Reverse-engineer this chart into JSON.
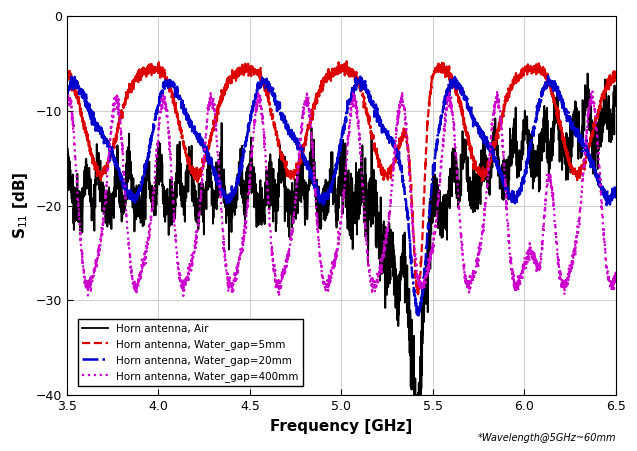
{
  "xlabel": "Frequency [GHz]",
  "ylabel": "S$_{11}$ [dB]",
  "xlim": [
    3.5,
    6.5
  ],
  "ylim": [
    -40,
    0
  ],
  "xticks": [
    3.5,
    4.0,
    4.5,
    5.0,
    5.5,
    6.0,
    6.5
  ],
  "yticks": [
    0,
    -10,
    -20,
    -30,
    -40
  ],
  "annotation": "*Wavelength@5GHz~60mm",
  "legend": [
    {
      "label": "Horn antenna, Air",
      "color": "#000000",
      "linestyle": "solid",
      "linewidth": 1.3
    },
    {
      "label": "Horn antenna, Water_gap=5mm",
      "color": "#dd0000",
      "linestyle": "dashed",
      "linewidth": 1.6
    },
    {
      "label": "Horn antenna, Water_gap=20mm",
      "color": "#0000cc",
      "linestyle": "dashdot",
      "linewidth": 1.8
    },
    {
      "label": "Horn antenna, Water_gap=400mm",
      "color": "#cc00cc",
      "linestyle": "dotted",
      "linewidth": 1.6
    }
  ],
  "background_color": "#ffffff",
  "grid_color": "#c8c8c8"
}
